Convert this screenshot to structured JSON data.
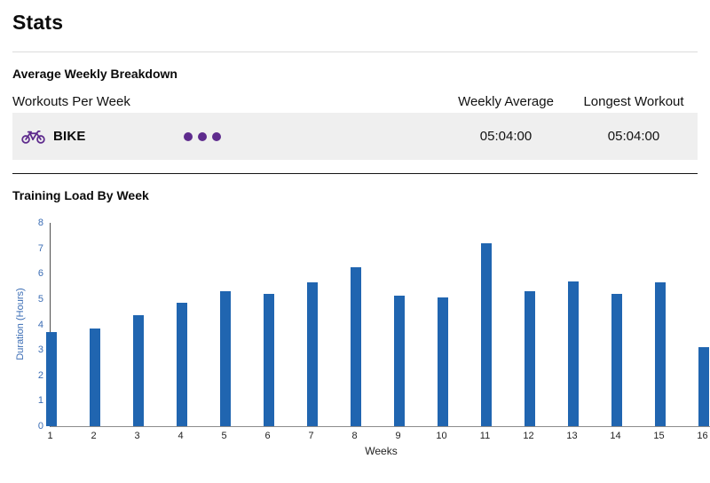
{
  "page": {
    "title": "Stats"
  },
  "breakdown": {
    "heading": "Average Weekly Breakdown",
    "table": {
      "col1_header": "Workouts Per Week",
      "col2_header": "Weekly Average",
      "col3_header": "Longest Workout",
      "row": {
        "sport": "BIKE",
        "icon": "bike-icon",
        "workouts_per_week": 3,
        "weekly_average": "05:04:00",
        "longest_workout": "05:04:00"
      }
    }
  },
  "training_load": {
    "heading": "Training Load By Week"
  },
  "chart_data": {
    "type": "bar",
    "title": "Training Load By Week",
    "xlabel": "Weeks",
    "ylabel": "Duration (Hours)",
    "categories": [
      "1",
      "2",
      "3",
      "4",
      "5",
      "6",
      "7",
      "8",
      "9",
      "10",
      "11",
      "12",
      "13",
      "14",
      "15",
      "16"
    ],
    "values": [
      3.7,
      3.85,
      4.35,
      4.85,
      5.3,
      5.2,
      5.65,
      6.25,
      5.15,
      5.05,
      7.2,
      5.3,
      5.7,
      5.2,
      5.65,
      3.1
    ],
    "ylim": [
      0,
      8
    ],
    "ytick_step": 1,
    "grid": false,
    "legend": "none",
    "bar_color": "#2065b0",
    "axis_label_color": "#3a6cb4",
    "xtick_label_color": "#222222"
  },
  "colors": {
    "accent_purple": "#5e2b8d",
    "row_background": "#efefef",
    "bar_blue": "#2065b0",
    "axis_blue": "#3a6cb4"
  }
}
